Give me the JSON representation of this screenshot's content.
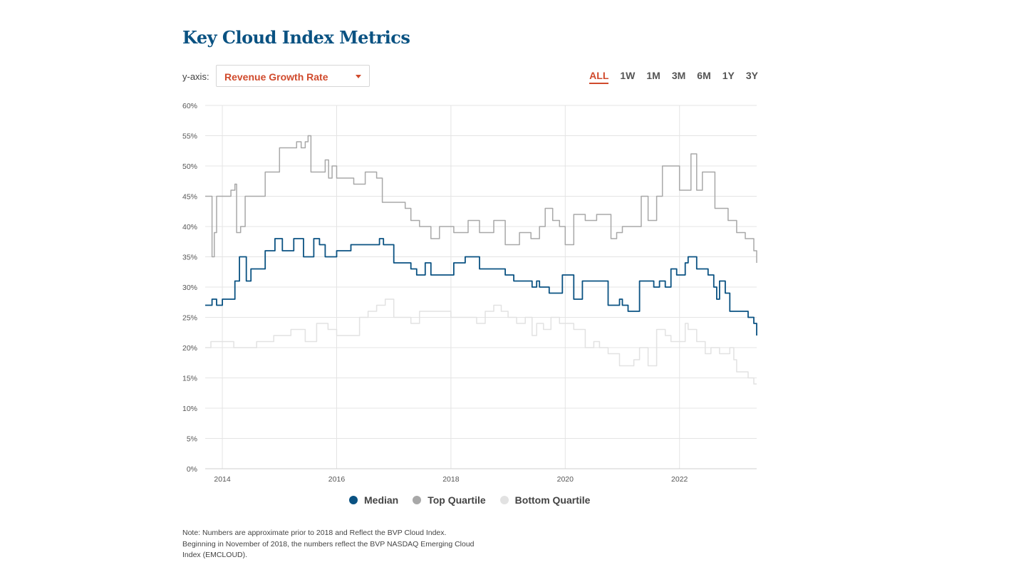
{
  "title": "Key Cloud Index Metrics",
  "controls": {
    "yaxis_label": "y-axis:",
    "yaxis_selected": "Revenue Growth Rate",
    "ranges": [
      "ALL",
      "1W",
      "1M",
      "3M",
      "6M",
      "1Y",
      "3Y"
    ],
    "active_range": "ALL"
  },
  "legend": [
    {
      "name": "Median",
      "color": "#0a5282"
    },
    {
      "name": "Top Quartile",
      "color": "#a8a8a8"
    },
    {
      "name": "Bottom Quartile",
      "color": "#e2e2e2"
    }
  ],
  "note": [
    "Note: Numbers are approximate prior to 2018 and Reflect the BVP Cloud Index.",
    "Beginning in November of 2018, the numbers reflect the BVP NASDAQ Emerging Cloud",
    "Index (EMCLOUD)."
  ],
  "chart_data": {
    "type": "line",
    "xlim": [
      2013.7,
      2023.35
    ],
    "ylim": [
      0,
      60
    ],
    "x_ticks": [
      2014,
      2016,
      2018,
      2020,
      2022
    ],
    "x_tick_labels": [
      "2014",
      "2016",
      "2018",
      "2020",
      "2022"
    ],
    "y_ticks": [
      0,
      5,
      10,
      15,
      20,
      25,
      30,
      35,
      40,
      45,
      50,
      55,
      60
    ],
    "y_tick_labels": [
      "0%",
      "5%",
      "10%",
      "15%",
      "20%",
      "25%",
      "30%",
      "35%",
      "40%",
      "45%",
      "50%",
      "55%",
      "60%"
    ],
    "grid": true,
    "legend_position": "bottom-center",
    "series": [
      {
        "name": "Top Quartile",
        "color": "#a8a8a8",
        "x": [
          2013.7,
          2013.78,
          2013.82,
          2013.86,
          2013.9,
          2014.0,
          2014.15,
          2014.22,
          2014.25,
          2014.27,
          2014.32,
          2014.4,
          2014.5,
          2014.75,
          2014.82,
          2015.0,
          2015.1,
          2015.3,
          2015.38,
          2015.45,
          2015.5,
          2015.55,
          2015.65,
          2015.8,
          2015.86,
          2015.92,
          2016.0,
          2016.2,
          2016.3,
          2016.45,
          2016.5,
          2016.7,
          2016.8,
          2017.05,
          2017.2,
          2017.3,
          2017.45,
          2017.65,
          2017.8,
          2018.05,
          2018.3,
          2018.5,
          2018.75,
          2018.95,
          2019.2,
          2019.4,
          2019.55,
          2019.65,
          2019.78,
          2019.9,
          2020.0,
          2020.15,
          2020.35,
          2020.55,
          2020.8,
          2020.9,
          2021.0,
          2021.2,
          2021.33,
          2021.45,
          2021.6,
          2021.7,
          2021.9,
          2022.0,
          2022.1,
          2022.2,
          2022.3,
          2022.4,
          2022.55,
          2022.62,
          2022.7,
          2022.85,
          2023.0,
          2023.15,
          2023.3,
          2023.35
        ],
        "y": [
          45,
          45,
          35,
          39,
          45,
          45,
          46,
          47,
          39,
          39,
          40,
          45,
          45,
          49,
          49,
          53,
          53,
          54,
          53,
          54,
          55,
          49,
          49,
          51,
          48,
          50,
          48,
          48,
          47,
          47,
          49,
          48,
          44,
          44,
          43,
          41,
          40,
          38,
          40,
          39,
          41,
          39,
          41,
          37,
          39,
          38,
          40,
          43,
          41,
          40,
          37,
          42,
          41,
          42,
          38,
          39,
          40,
          40,
          45,
          41,
          45,
          50,
          50,
          46,
          46,
          52,
          46,
          49,
          49,
          43,
          43,
          41,
          39,
          38,
          36,
          34
        ]
      },
      {
        "name": "Median",
        "color": "#0a5282",
        "x": [
          2013.7,
          2013.8,
          2013.82,
          2013.9,
          2014.0,
          2014.22,
          2014.25,
          2014.3,
          2014.42,
          2014.5,
          2014.75,
          2014.85,
          2014.92,
          2015.05,
          2015.25,
          2015.42,
          2015.5,
          2015.6,
          2015.7,
          2015.8,
          2016.0,
          2016.25,
          2016.5,
          2016.62,
          2016.75,
          2016.82,
          2017.0,
          2017.2,
          2017.3,
          2017.4,
          2017.55,
          2017.65,
          2017.8,
          2018.05,
          2018.25,
          2018.3,
          2018.5,
          2018.7,
          2018.95,
          2019.1,
          2019.25,
          2019.42,
          2019.5,
          2019.55,
          2019.72,
          2019.95,
          2020.0,
          2020.15,
          2020.3,
          2020.5,
          2020.75,
          2020.85,
          2020.95,
          2021.0,
          2021.1,
          2021.3,
          2021.45,
          2021.55,
          2021.65,
          2021.75,
          2021.85,
          2021.95,
          2022.1,
          2022.15,
          2022.3,
          2022.5,
          2022.6,
          2022.65,
          2022.7,
          2022.8,
          2022.88,
          2023.0,
          2023.1,
          2023.2,
          2023.3,
          2023.35
        ],
        "y": [
          27,
          27,
          28,
          27,
          28,
          31,
          31,
          35,
          31,
          33,
          36,
          36,
          38,
          36,
          38,
          35,
          35,
          38,
          37,
          35,
          36,
          37,
          37,
          37,
          38,
          37,
          34,
          34,
          33,
          32,
          34,
          32,
          32,
          34,
          35,
          35,
          33,
          33,
          32,
          31,
          31,
          30,
          31,
          30,
          29,
          32,
          32,
          28,
          31,
          31,
          27,
          27,
          28,
          27,
          26,
          31,
          31,
          30,
          31,
          30,
          33,
          32,
          34,
          35,
          33,
          32,
          30,
          28,
          31,
          29,
          26,
          26,
          26,
          25,
          24,
          22
        ]
      },
      {
        "name": "Bottom Quartile",
        "color": "#e2e2e2",
        "x": [
          2013.7,
          2013.8,
          2014.0,
          2014.2,
          2014.4,
          2014.6,
          2014.75,
          2014.9,
          2015.05,
          2015.2,
          2015.3,
          2015.45,
          2015.55,
          2015.65,
          2015.85,
          2016.0,
          2016.1,
          2016.25,
          2016.4,
          2016.55,
          2016.7,
          2016.85,
          2017.0,
          2017.2,
          2017.3,
          2017.45,
          2017.65,
          2017.85,
          2018.0,
          2018.2,
          2018.3,
          2018.45,
          2018.6,
          2018.75,
          2018.88,
          2019.0,
          2019.15,
          2019.3,
          2019.42,
          2019.5,
          2019.62,
          2019.75,
          2019.9,
          2020.0,
          2020.15,
          2020.35,
          2020.5,
          2020.6,
          2020.75,
          2020.95,
          2021.05,
          2021.2,
          2021.3,
          2021.45,
          2021.5,
          2021.6,
          2021.75,
          2021.85,
          2021.95,
          2022.1,
          2022.15,
          2022.3,
          2022.45,
          2022.55,
          2022.7,
          2022.8,
          2022.88,
          2022.95,
          2023.0,
          2023.1,
          2023.2,
          2023.3,
          2023.35
        ],
        "y": [
          20,
          21,
          21,
          20,
          20,
          21,
          21,
          22,
          22,
          23,
          23,
          21,
          21,
          24,
          23,
          22,
          22,
          22,
          25,
          26,
          27,
          28,
          25,
          25,
          24,
          26,
          26,
          26,
          25,
          25,
          25,
          24,
          26,
          27,
          26,
          25,
          24,
          25,
          22,
          24,
          23,
          25,
          24,
          24,
          23,
          20,
          21,
          20,
          19,
          17,
          17,
          18,
          20,
          17,
          17,
          23,
          22,
          21,
          21,
          24,
          23,
          21,
          19,
          20,
          19,
          19,
          20,
          18,
          16,
          16,
          15,
          14,
          14
        ]
      }
    ]
  }
}
